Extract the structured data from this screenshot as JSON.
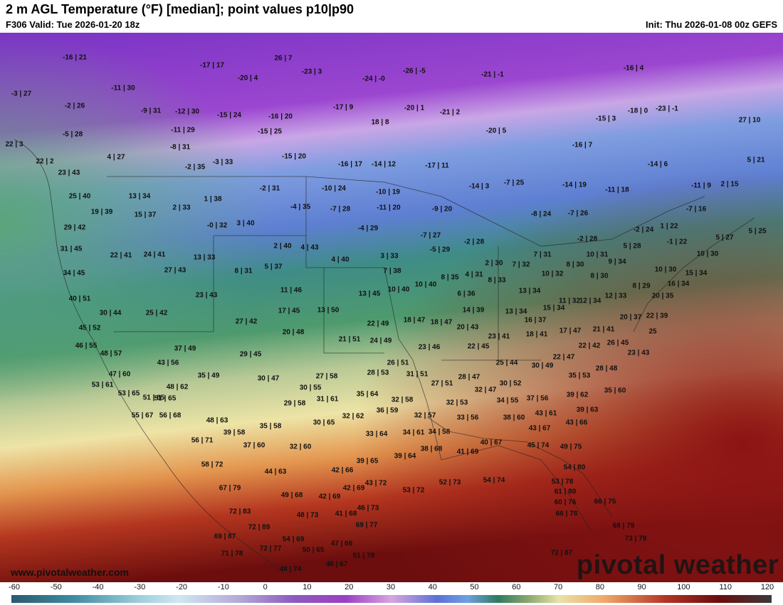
{
  "header": {
    "title": "2 m AGL Temperature (°F) [median]; point values p10|p90",
    "valid": "F306 Valid: Tue 2026-01-20 18z",
    "init": "Init: Thu 2026-01-08 00z GEFS"
  },
  "footer": {
    "site": "www.pivotalweather.com",
    "logo": "pivotal weather"
  },
  "colorbar": {
    "ticks": [
      "-60",
      "-50",
      "-40",
      "-30",
      "-20",
      "-10",
      "0",
      "10",
      "20",
      "30",
      "40",
      "50",
      "60",
      "70",
      "80",
      "90",
      "100",
      "110",
      "120"
    ]
  },
  "colors": {
    "frigid": "#8a37c8",
    "cold": "#6a8fdc",
    "cool": "#3d8a7a",
    "mild": "#e8e3a6",
    "warm": "#d2642e",
    "hot": "#7a1010"
  },
  "points": [
    "-16 | 21",
    "-17 | 17",
    "26 | 7",
    "-23 | 3",
    "-24 | -0",
    "-26 | -5",
    "-21 | -1",
    "-16 | 4",
    "-3 | 27",
    "-11 | 30",
    "-20 | 4",
    "-2 | 26",
    "-9 | 31",
    "-12 | 30",
    "-15 | 24",
    "-16 | 20",
    "-17 | 9",
    "-20 | 1",
    "-21 | 2",
    "-18 | 0",
    "-23 | -1",
    "-5 | 28",
    "-11 | 29",
    "-15 | 25",
    "18 | 8",
    "-20 | 5",
    "-15 | 3",
    "27 | 10",
    "22 | 3",
    "-8 | 31",
    "-15 | 20",
    "-16 | 7",
    "4 | 27",
    "-2 | 35",
    "-3 | 33",
    "-16 | 17",
    "-14 | 12",
    "-17 | 11",
    "-14 | 6",
    "5 | 21",
    "22 | 2",
    "23 | 43",
    "-2 | 31",
    "-10 | 24",
    "-14 | 3",
    "-7 | 25",
    "-14 | 19",
    "-11 | 18",
    "-11 | 9",
    "2 | 15",
    "13 | 34",
    "1 | 38",
    "-10 | 19",
    "25 | 40",
    "-4 | 35",
    "-7 | 28",
    "-11 | 20",
    "-9 | 20",
    "-7 | 16",
    "19 | 39",
    "15 | 37",
    "2 | 33",
    "-8 | 24",
    "-7 | 26",
    "-2 | 24",
    "1 | 22",
    "5 | 25",
    "29 | 42",
    "-0 | 32",
    "3 | 40",
    "-4 | 29",
    "-7 | 27",
    "-2 | 28",
    "-2 | 28",
    "-1 | 22",
    "5 | 27",
    "31 | 45",
    "2 | 40",
    "4 | 43",
    "-5 | 29",
    "22 | 41",
    "24 | 41",
    "13 | 33",
    "3 | 33",
    "2 | 30",
    "7 | 31",
    "10 | 31",
    "5 | 28",
    "34 | 45",
    "27 | 43",
    "8 | 31",
    "5 | 37",
    "4 | 40",
    "7 | 38",
    "7 | 32",
    "8 | 30",
    "9 | 34",
    "10 | 30",
    "10 | 30",
    "8 | 35",
    "4 | 31",
    "8 | 33",
    "10 | 32",
    "8 | 30",
    "15 | 34",
    "40 | 51",
    "23 | 43",
    "11 | 46",
    "13 | 45",
    "10 | 40",
    "10 | 40",
    "6 | 36",
    "13 | 34",
    "11 | 32",
    "12 | 33",
    "8 | 29",
    "16 | 34",
    "30 | 44",
    "25 | 42",
    "17 | 45",
    "13 | 50",
    "14 | 39",
    "13 | 34",
    "15 | 34",
    "12 | 34",
    "20 | 35",
    "27 | 42",
    "18 | 47",
    "18 | 47",
    "20 | 43",
    "16 | 37",
    "20 | 37",
    "22 | 39",
    "45 | 52",
    "22 | 49",
    "20 | 48",
    "21 | 51",
    "24 | 49",
    "23 | 41",
    "18 | 41",
    "17 | 47",
    "21 | 41",
    "25",
    "46 | 55",
    "37 | 49",
    "23 | 46",
    "22 | 45",
    "22 | 42",
    "26 | 45",
    "48 | 57",
    "29 | 45",
    "26 | 51",
    "25 | 44",
    "22 | 47",
    "30 | 49",
    "23 | 43",
    "43 | 56",
    "27 | 58",
    "28 | 53",
    "31 | 51",
    "28 | 47",
    "28 | 48",
    "47 | 60",
    "35 | 49",
    "30 | 47",
    "27 | 51",
    "30 | 52",
    "35 | 53",
    "53 | 61",
    "48 | 62",
    "30 | 55",
    "35 | 64",
    "32 | 47",
    "53 | 65",
    "51 | 65",
    "31 | 61",
    "32 | 58",
    "34 | 55",
    "37 | 56",
    "39 | 62",
    "35 | 60",
    "29 | 58",
    "32 | 53",
    "55 | 67",
    "56 | 68",
    "48 | 63",
    "36 | 59",
    "32 | 62",
    "32 | 57",
    "33 | 56",
    "38 | 60",
    "43 | 61",
    "39 | 63",
    "51 | 65",
    "30 | 65",
    "33 | 64",
    "34 | 61",
    "34 | 58",
    "43 | 67",
    "43 | 66",
    "39 | 58",
    "35 | 58",
    "56 | 71",
    "37 | 60",
    "32 | 60",
    "38 | 68",
    "40 | 67",
    "45 | 74",
    "49 | 75",
    "41 | 69",
    "58 | 72",
    "44 | 63",
    "39 | 65",
    "39 | 64",
    "42 | 66",
    "54 | 80",
    "52 | 73",
    "54 | 74",
    "67 | 79",
    "43 | 72",
    "42 | 69",
    "53 | 72",
    "53 | 78",
    "61 | 80",
    "49 | 68",
    "42 | 69",
    "60 | 76",
    "66 | 75",
    "72 | 83",
    "48 | 73",
    "41 | 68",
    "46 | 73",
    "66 | 78",
    "68 | 79",
    "48 | 74",
    "69 | 77",
    "72 | 89",
    "69 | 87",
    "54 | 69",
    "73 | 79",
    "47 | 66",
    "50 | 65",
    "71 | 78",
    "72 | 77",
    "51 | 78",
    "72 | 87",
    "48 | 67"
  ]
}
